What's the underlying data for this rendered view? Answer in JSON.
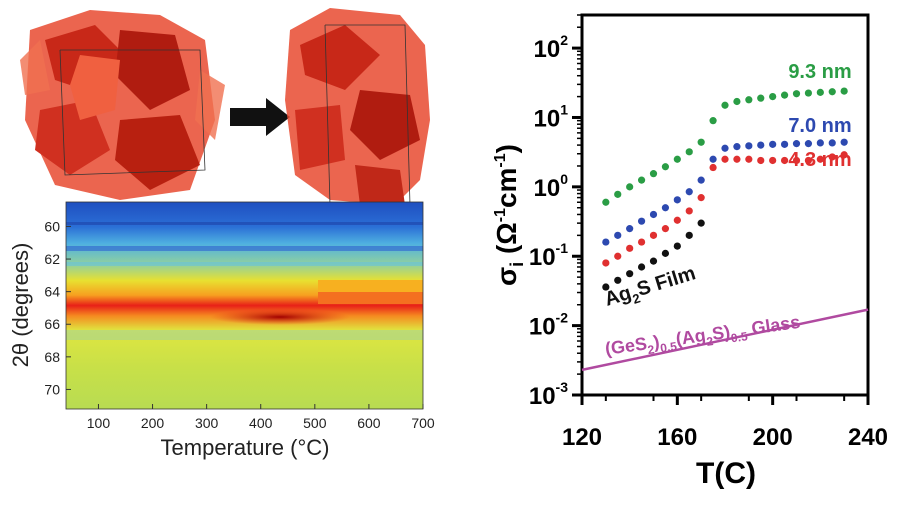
{
  "left_panel": {
    "crystal_arrow": "right-arrow",
    "heatmap": {
      "type": "heatmap",
      "xlabel": "Temperature (°C)",
      "ylabel": "2θ (degrees)",
      "xticks": [
        100,
        200,
        300,
        400,
        500,
        600,
        700
      ],
      "yticks": [
        60,
        62,
        64,
        66,
        68,
        70
      ],
      "xlim": [
        40,
        700
      ],
      "ylim": [
        58.5,
        71.2
      ],
      "y_inverted": true,
      "colormap": "jet",
      "colors": {
        "low": "#1f50c8",
        "mid": "#d8e83a",
        "high": "#e81818"
      }
    }
  },
  "chart_data": {
    "type": "scatter",
    "xlabel": "T(C)",
    "ylabel": "σi (Ω-1cm-1)",
    "ylabel_parts": {
      "main": "σ",
      "sub": "i",
      "open": " (Ω",
      "sup1": "-1",
      "mid": "cm",
      "sup2": "-1",
      "close": ")"
    },
    "y_scale": "log",
    "xlim": [
      120,
      240
    ],
    "ylim": [
      0.001,
      300
    ],
    "xticks": [
      120,
      160,
      200,
      240
    ],
    "yticks": [
      {
        "value": 0.001,
        "base": "10",
        "exp": "-3"
      },
      {
        "value": 0.01,
        "base": "10",
        "exp": "-2"
      },
      {
        "value": 0.1,
        "base": "10",
        "exp": "-1"
      },
      {
        "value": 1,
        "base": "10",
        "exp": "0"
      },
      {
        "value": 10,
        "base": "10",
        "exp": "1"
      },
      {
        "value": 100,
        "base": "10",
        "exp": "2"
      }
    ],
    "series": [
      {
        "name": "9.3 nm",
        "color": "#2a9d45",
        "x": [
          130,
          135,
          140,
          145,
          150,
          155,
          160,
          165,
          170,
          175,
          180,
          185,
          190,
          195,
          200,
          205,
          210,
          215,
          220,
          225,
          230
        ],
        "y": [
          0.6,
          0.78,
          1.0,
          1.25,
          1.55,
          1.95,
          2.5,
          3.2,
          4.4,
          9.0,
          15,
          17,
          18,
          19,
          20,
          21,
          22,
          22.5,
          23,
          23.5,
          24
        ]
      },
      {
        "name": "7.0 nm",
        "color": "#2d49b0",
        "x": [
          130,
          135,
          140,
          145,
          150,
          155,
          160,
          165,
          170,
          175,
          180,
          185,
          190,
          195,
          200,
          205,
          210,
          215,
          220,
          225,
          230
        ],
        "y": [
          0.16,
          0.2,
          0.25,
          0.32,
          0.4,
          0.5,
          0.65,
          0.85,
          1.25,
          2.5,
          3.6,
          3.8,
          3.9,
          4.0,
          4.1,
          4.1,
          4.2,
          4.2,
          4.3,
          4.3,
          4.4
        ]
      },
      {
        "name": "4.3 nm",
        "color": "#e03030",
        "x": [
          130,
          135,
          140,
          145,
          150,
          155,
          160,
          165,
          170,
          175,
          180,
          185,
          190,
          195,
          200,
          205,
          210,
          215,
          220,
          225,
          230
        ],
        "y": [
          0.08,
          0.1,
          0.13,
          0.16,
          0.2,
          0.25,
          0.33,
          0.45,
          0.7,
          1.9,
          2.5,
          2.5,
          2.5,
          2.4,
          2.4,
          2.4,
          2.4,
          2.4,
          2.5,
          2.7,
          2.9
        ]
      },
      {
        "name": "Ag2S Film",
        "color": "#111111",
        "x": [
          130,
          135,
          140,
          145,
          150,
          155,
          160,
          165,
          170
        ],
        "y": [
          0.036,
          0.045,
          0.056,
          0.07,
          0.085,
          0.11,
          0.14,
          0.2,
          0.3
        ]
      }
    ],
    "glass_line": {
      "name": "(GeS2)0.5(Ag2S)0.5 Glass",
      "color": "#b04aa0",
      "x": [
        120,
        240
      ],
      "y": [
        0.0023,
        0.017
      ]
    },
    "annotations": [
      {
        "text": "9.3 nm",
        "color": "#2a9d45"
      },
      {
        "text": "7.0 nm",
        "color": "#2d49b0"
      },
      {
        "text": "4.3 nm",
        "color": "#e03030"
      }
    ],
    "film_label": {
      "main": "Ag",
      "sub": "2",
      "rest": "S Film"
    },
    "glass_label": {
      "p1": "(GeS",
      "s1": "2",
      "p2": ")",
      "s2": "0.5",
      "p3": "(Ag",
      "s3": "2",
      "p4": "S)",
      "s4": "0.5",
      "p5": " Glass"
    }
  }
}
